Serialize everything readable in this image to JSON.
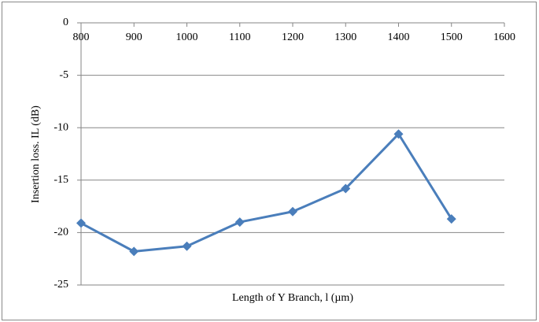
{
  "chart_data": {
    "type": "line",
    "x_label": "Length of Y Branch, l (µm)",
    "y_label": "Insertion loss. IL (dB)",
    "x": [
      800,
      900,
      1000,
      1100,
      1200,
      1300,
      1400,
      1500
    ],
    "series": [
      {
        "name": "Insertion loss",
        "color": "#4a7ebb",
        "values": [
          -19.1,
          -21.8,
          -21.3,
          -19.0,
          -18.0,
          -15.8,
          -10.6,
          -18.7
        ]
      }
    ],
    "xlim": [
      800,
      1600
    ],
    "xticks": [
      800,
      900,
      1000,
      1100,
      1200,
      1300,
      1400,
      1500,
      1600
    ],
    "ylim": [
      -25,
      0
    ],
    "yticks": [
      0,
      -5,
      -10,
      -15,
      -20,
      -25
    ],
    "grid": true
  }
}
